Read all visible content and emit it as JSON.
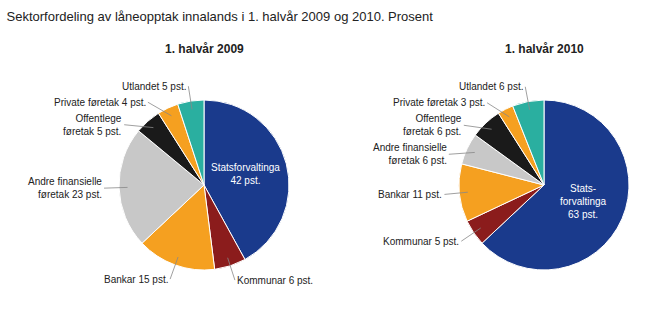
{
  "title": "Sektorfordeling av låneopptak innalands i 1. halvår 2009 og 2010. Prosent",
  "chart_data": [
    {
      "type": "pie",
      "title": "1. halvår 2009",
      "categories": [
        "Statsforvaltinga",
        "Kommunar",
        "Bankar",
        "Andre finansielle føretak",
        "Offentlege føretak",
        "Private føretak",
        "Utlandet"
      ],
      "values": [
        42,
        6,
        15,
        23,
        5,
        4,
        5
      ],
      "colors": [
        "#1a3a8c",
        "#8b1c1c",
        "#f5a020",
        "#c8c8c8",
        "#1a1a1a",
        "#f5a020",
        "#2aafa0"
      ],
      "data_labels": true,
      "value_labels": [
        "Statsforvaltinga\n42 pst.",
        "Kommunar 6 pst.",
        "Bankar 15 pst.",
        "Andre finansielle\nføretak 23 pst.",
        "Offentlege\nføretak 5 pst.",
        "Private føretak 4 pst.",
        "Utlandet 5 pst."
      ]
    },
    {
      "type": "pie",
      "title": "1. halvår 2010",
      "categories": [
        "Statsforvaltinga",
        "Kommunar",
        "Bankar",
        "Andre finansielle føretak",
        "Offentlege føretak",
        "Private føretak",
        "Utlandet"
      ],
      "values": [
        63,
        5,
        11,
        6,
        6,
        3,
        6
      ],
      "colors": [
        "#1a3a8c",
        "#8b1c1c",
        "#f5a020",
        "#c8c8c8",
        "#1a1a1a",
        "#f5a020",
        "#2aafa0"
      ],
      "data_labels": true,
      "value_labels": [
        "Stats-\nforvaltinga\n63 pst.",
        "Kommunar 5 pst.",
        "Bankar 11 pst.",
        "Andre finansielle\nføretak 6 pst.",
        "Offentlege\nføretak 6 pst.",
        "Private føretak 3 pst.",
        "Utlandet 6 pst."
      ]
    }
  ]
}
